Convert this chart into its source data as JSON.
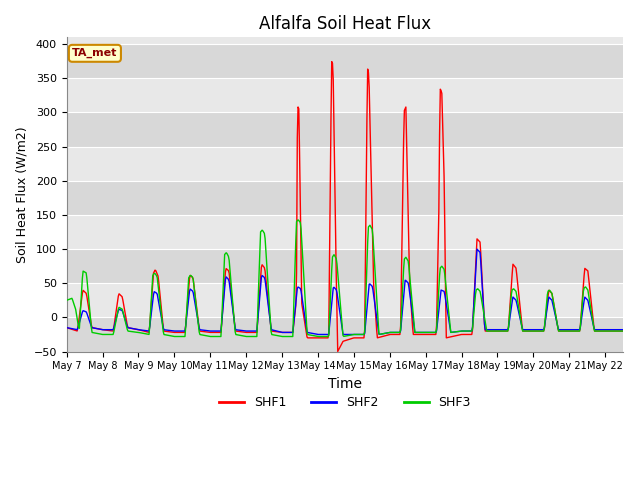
{
  "title": "Alfalfa Soil Heat Flux",
  "xlabel": "Time",
  "ylabel": "Soil Heat Flux (W/m2)",
  "ylim": [
    -50,
    410
  ],
  "annotation_text": "TA_met",
  "legend_labels": [
    "SHF1",
    "SHF2",
    "SHF3"
  ],
  "line_colors": {
    "SHF1": "#ff0000",
    "SHF2": "#0000ff",
    "SHF3": "#00cc00"
  },
  "background_bands": [
    "#dcdcdc",
    "#e8e8e8"
  ],
  "grid_color": "#ffffff",
  "yticks": [
    -50,
    0,
    50,
    100,
    150,
    200,
    250,
    300,
    350,
    400
  ],
  "xtick_labels": [
    "May 7",
    "May 8",
    "May 9",
    "May 10",
    "May 11",
    "May 12",
    "May 13",
    "May 14",
    "May 15",
    "May 16",
    "May 17",
    "May 18",
    "May 19",
    "May 20",
    "May 21",
    "May 22"
  ]
}
